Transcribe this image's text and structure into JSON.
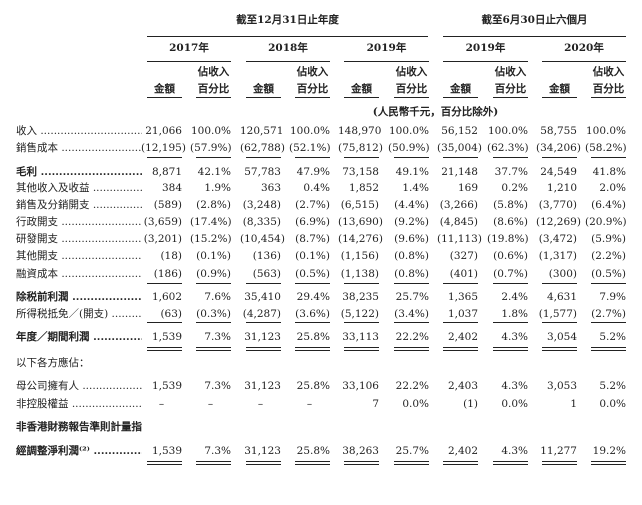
{
  "header": {
    "group_annual": "截至12月31日止年度",
    "group_six_months": "截至6月30日止六個月",
    "years": [
      "2017年",
      "2018年",
      "2019年",
      "2019年",
      "2020年"
    ],
    "col_amount": "金額",
    "col_pct_line1": "佔收入",
    "col_pct_line2": "百分比",
    "unit_note": "(人民幣千元，百分比除外)"
  },
  "rows": [
    {
      "label": "收入",
      "bold": false,
      "values": [
        "21,066",
        "100.0%",
        "120,571",
        "100.0%",
        "148,970",
        "100.0%",
        "56,152",
        "100.0%",
        "58,755",
        "100.0%"
      ]
    },
    {
      "label": "銷售成本",
      "bold": false,
      "values": [
        "(12,195)",
        "(57.9%)",
        "(62,788)",
        "(52.1%)",
        "(75,812)",
        "(50.9%)",
        "(35,004)",
        "(62.3%)",
        "(34,206)",
        "(58.2%)"
      ]
    },
    {
      "label": "毛利",
      "bold": true,
      "values": [
        "8,871",
        "42.1%",
        "57,783",
        "47.9%",
        "73,158",
        "49.1%",
        "21,148",
        "37.7%",
        "24,549",
        "41.8%"
      ]
    },
    {
      "label": "其他收入及收益",
      "bold": false,
      "values": [
        "384",
        "1.9%",
        "363",
        "0.4%",
        "1,852",
        "1.4%",
        "169",
        "0.2%",
        "1,210",
        "2.0%"
      ]
    },
    {
      "label": "銷售及分銷開支",
      "bold": false,
      "values": [
        "(589)",
        "(2.8%)",
        "(3,248)",
        "(2.7%)",
        "(6,515)",
        "(4.4%)",
        "(3,266)",
        "(5.8%)",
        "(3,770)",
        "(6.4%)"
      ]
    },
    {
      "label": "行政開支",
      "bold": false,
      "values": [
        "(3,659)",
        "(17.4%)",
        "(8,335)",
        "(6.9%)",
        "(13,690)",
        "(9.2%)",
        "(4,845)",
        "(8.6%)",
        "(12,269)",
        "(20.9%)"
      ]
    },
    {
      "label": "研發開支",
      "bold": false,
      "values": [
        "(3,201)",
        "(15.2%)",
        "(10,454)",
        "(8.7%)",
        "(14,276)",
        "(9.6%)",
        "(11,113)",
        "(19.8%)",
        "(3,472)",
        "(5.9%)"
      ]
    },
    {
      "label": "其他開支",
      "bold": false,
      "values": [
        "(18)",
        "(0.1%)",
        "(136)",
        "(0.1%)",
        "(1,156)",
        "(0.8%)",
        "(327)",
        "(0.6%)",
        "(1,317)",
        "(2.2%)"
      ]
    },
    {
      "label": "融資成本",
      "bold": false,
      "values": [
        "(186)",
        "(0.9%)",
        "(563)",
        "(0.5%)",
        "(1,138)",
        "(0.8%)",
        "(401)",
        "(0.7%)",
        "(300)",
        "(0.5%)"
      ]
    },
    {
      "label": "除税前利潤",
      "bold": true,
      "values": [
        "1,602",
        "7.6%",
        "35,410",
        "29.4%",
        "38,235",
        "25.7%",
        "1,365",
        "2.4%",
        "4,631",
        "7.9%"
      ]
    },
    {
      "label": "所得税抵免／(開支)",
      "bold": false,
      "values": [
        "(63)",
        "(0.3%)",
        "(4,287)",
        "(3.6%)",
        "(5,122)",
        "(3.4%)",
        "1,037",
        "1.8%",
        "(1,577)",
        "(2.7%)"
      ]
    },
    {
      "label": "年度／期間利潤",
      "bold": true,
      "values": [
        "1,539",
        "7.3%",
        "31,123",
        "25.8%",
        "33,113",
        "22.2%",
        "2,402",
        "4.3%",
        "3,054",
        "5.2%"
      ]
    },
    {
      "label": "以下各方應佔：",
      "bold": false,
      "values": []
    },
    {
      "label": "母公司擁有人",
      "bold": false,
      "values": [
        "1,539",
        "7.3%",
        "31,123",
        "25.8%",
        "33,106",
        "22.2%",
        "2,403",
        "4.3%",
        "3,053",
        "5.2%"
      ]
    },
    {
      "label": "非控股權益",
      "bold": false,
      "values": [
        "–",
        "–",
        "–",
        "–",
        "7",
        "0.0%",
        "(1)",
        "0.0%",
        "1",
        "0.0%"
      ]
    },
    {
      "label": "非香港財務報告準則計量指標⁽¹⁾",
      "bold": true,
      "values": []
    },
    {
      "label": "經調整淨利潤⁽²⁾",
      "bold": true,
      "values": [
        "1,539",
        "7.3%",
        "31,123",
        "25.8%",
        "38,263",
        "25.7%",
        "2,402",
        "4.3%",
        "11,277",
        "19.2%"
      ]
    }
  ]
}
